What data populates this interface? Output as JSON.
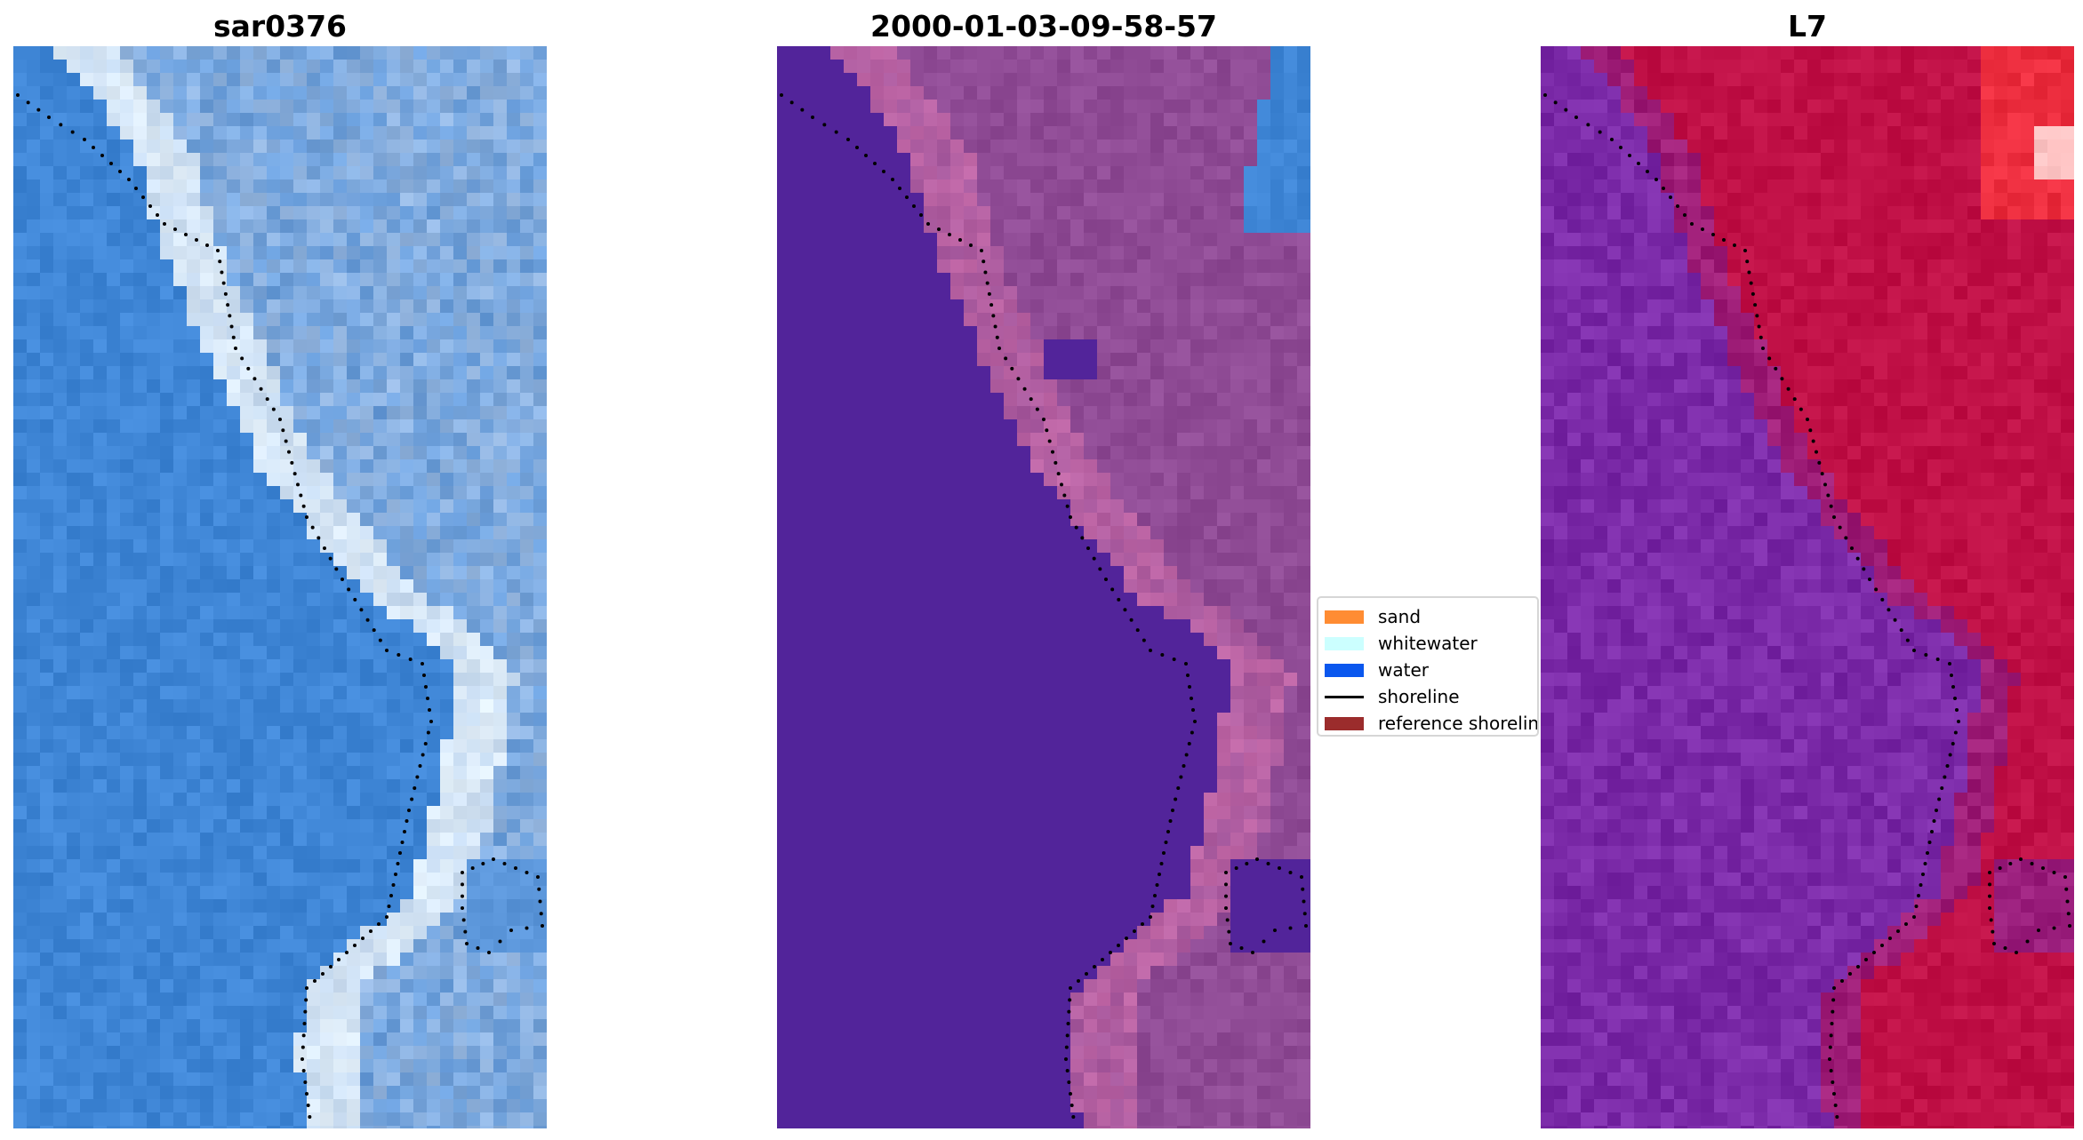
{
  "panels": [
    {
      "title": "sar0376",
      "style": "rgb"
    },
    {
      "title": "2000-01-03-09-58-57",
      "style": "classified"
    },
    {
      "title": "L7",
      "style": "index"
    }
  ],
  "legend": {
    "items": [
      {
        "label": "sand",
        "color": "#ff8c33",
        "kind": "patch"
      },
      {
        "label": "whitewater",
        "color": "#ccffff",
        "kind": "patch"
      },
      {
        "label": "water",
        "color": "#0a57ee",
        "kind": "patch"
      },
      {
        "label": "shoreline",
        "color": "#000000",
        "kind": "line"
      },
      {
        "label": "reference shoreline",
        "color": "#9b2c2c",
        "kind": "patch"
      }
    ]
  },
  "colors": {
    "water_rgb": "#3f86d6",
    "land_rgb": "#9cbbe2",
    "surf_rgb": "#e6f2fb",
    "classified_water": "#52249a",
    "classified_land": "#8f4b95",
    "classified_surf": "#c66aa8",
    "index_water": "#7b2aa8",
    "index_land": "#c01046",
    "index_bright": "#ff3a3a",
    "index_white": "#ffffff"
  }
}
